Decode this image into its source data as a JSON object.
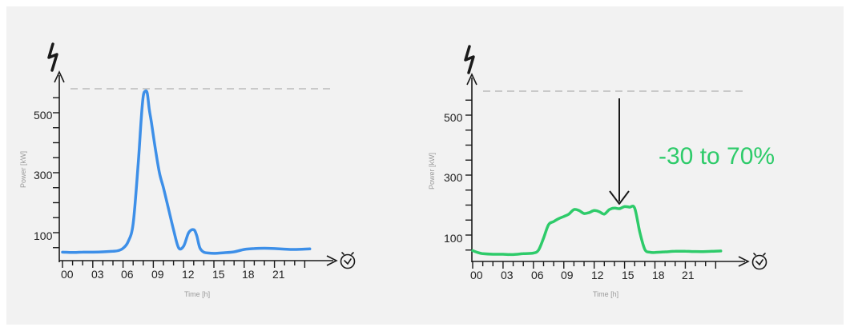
{
  "colors": {
    "background": "#f2f2f2",
    "left_series": "#3d8fe8",
    "right_series": "#2ecb6a",
    "annotation": "#2ecb6a",
    "reference_line": "#c9c9c9",
    "axis": "#1a1a1a"
  },
  "icons": {
    "y_axis": "lightning-bolt-icon",
    "x_axis": "clock-icon"
  },
  "chart_data": [
    {
      "type": "line",
      "xlabel": "Time [h]",
      "ylabel": "Power [kW]",
      "x_ticks": [
        "00",
        "03",
        "06",
        "09",
        "12",
        "15",
        "18",
        "21"
      ],
      "y_ticks": [
        "100",
        "300",
        "500"
      ],
      "xlim": [
        0,
        25
      ],
      "ylim": [
        20,
        580
      ],
      "grid": false,
      "reference_line": {
        "y": 580,
        "style": "dashed"
      },
      "series": [
        {
          "x": [
            0,
            1,
            2,
            3,
            4,
            5,
            5.5,
            6,
            6.5,
            7,
            7.5,
            7.8,
            8,
            8.2,
            8.4,
            8.6,
            8.8,
            9.2,
            9.6,
            10,
            10.5,
            11,
            11.5,
            12,
            12.5,
            13,
            13.3,
            13.6,
            14,
            14.5,
            15,
            16,
            17,
            18,
            19,
            20,
            21,
            22,
            23,
            24.5
          ],
          "y": [
            35,
            34,
            35,
            35,
            36,
            38,
            40,
            48,
            70,
            130,
            330,
            480,
            555,
            572,
            565,
            510,
            470,
            380,
            300,
            250,
            180,
            110,
            50,
            55,
            100,
            110,
            90,
            50,
            35,
            32,
            31,
            33,
            36,
            44,
            47,
            48,
            47,
            45,
            44,
            46
          ]
        }
      ]
    },
    {
      "type": "line",
      "xlabel": "Time [h]",
      "ylabel": "Power [kW]",
      "x_ticks": [
        "00",
        "03",
        "06",
        "09",
        "12",
        "15",
        "18",
        "21"
      ],
      "y_ticks": [
        "100",
        "300",
        "500"
      ],
      "xlim": [
        0,
        25
      ],
      "ylim": [
        20,
        580
      ],
      "grid": false,
      "reference_line": {
        "y": 580,
        "style": "dashed"
      },
      "annotation": "-30 to 70%",
      "series": [
        {
          "x": [
            0,
            0.5,
            1,
            2,
            3,
            4,
            5,
            6,
            6.5,
            7,
            7.5,
            8,
            8.5,
            9,
            9.5,
            10,
            10.5,
            11,
            11.5,
            12,
            12.5,
            13,
            13.5,
            14,
            14.5,
            15,
            15.5,
            16,
            16.5,
            17,
            17.5,
            18,
            19,
            20,
            21,
            22,
            23,
            24.5
          ],
          "y": [
            48,
            42,
            38,
            36,
            36,
            35,
            38,
            40,
            50,
            90,
            135,
            145,
            155,
            162,
            170,
            185,
            182,
            172,
            175,
            182,
            178,
            170,
            185,
            190,
            188,
            195,
            193,
            190,
            110,
            52,
            43,
            42,
            44,
            46,
            46,
            45,
            45,
            47
          ]
        }
      ]
    }
  ]
}
